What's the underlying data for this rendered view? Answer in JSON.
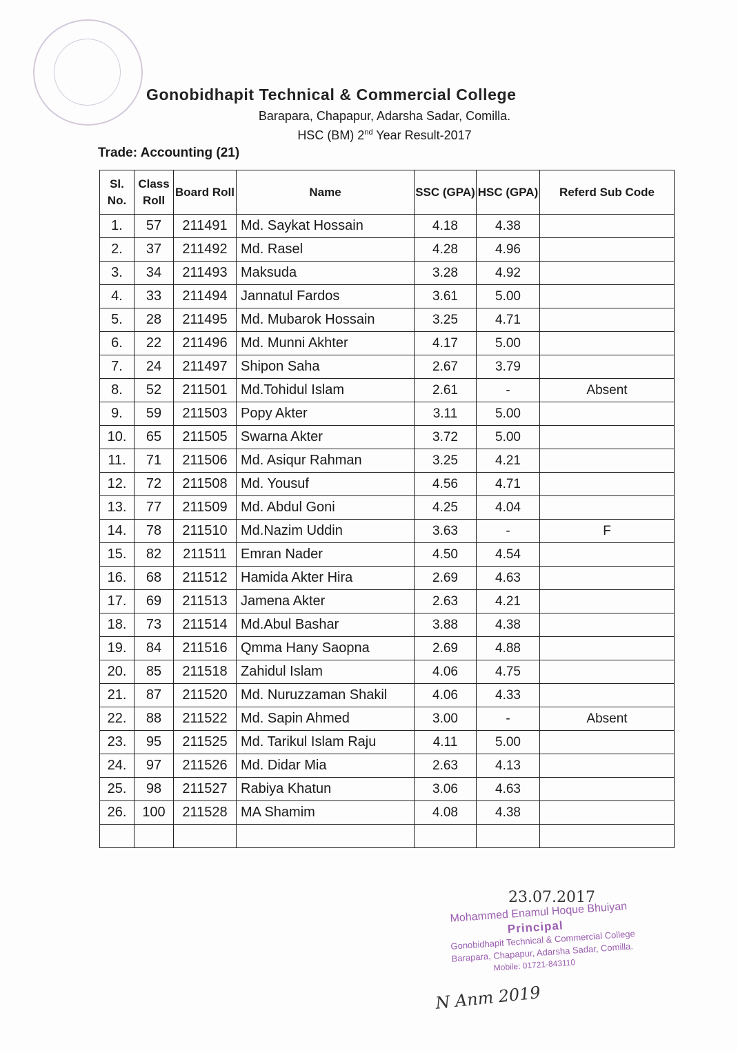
{
  "header": {
    "college": "Gonobidhapit Technical & Commercial College",
    "address": "Barapara, Chapapur, Adarsha Sadar, Comilla.",
    "result_prefix": "HSC (BM) 2",
    "result_sup": "nd",
    "result_suffix": " Year Result-2017",
    "trade": "Trade: Accounting (21)"
  },
  "table": {
    "columns": [
      "Sl. No.",
      "Class Roll",
      "Board Roll",
      "Name",
      "SSC (GPA)",
      "HSC (GPA)",
      "Referd Sub Code"
    ],
    "rows": [
      [
        "1.",
        "57",
        "211491",
        "Md. Saykat Hossain",
        "4.18",
        "4.38",
        ""
      ],
      [
        "2.",
        "37",
        "211492",
        "Md. Rasel",
        "4.28",
        "4.96",
        ""
      ],
      [
        "3.",
        "34",
        "211493",
        "Maksuda",
        "3.28",
        "4.92",
        ""
      ],
      [
        "4.",
        "33",
        "211494",
        "Jannatul Fardos",
        "3.61",
        "5.00",
        ""
      ],
      [
        "5.",
        "28",
        "211495",
        "Md. Mubarok Hossain",
        "3.25",
        "4.71",
        ""
      ],
      [
        "6.",
        "22",
        "211496",
        "Md. Munni Akhter",
        "4.17",
        "5.00",
        ""
      ],
      [
        "7.",
        "24",
        "211497",
        "Shipon Saha",
        "2.67",
        "3.79",
        ""
      ],
      [
        "8.",
        "52",
        "211501",
        "Md.Tohidul Islam",
        "2.61",
        "-",
        "Absent"
      ],
      [
        "9.",
        "59",
        "211503",
        "Popy Akter",
        "3.11",
        "5.00",
        ""
      ],
      [
        "10.",
        "65",
        "211505",
        "Swarna Akter",
        "3.72",
        "5.00",
        ""
      ],
      [
        "11.",
        "71",
        "211506",
        "Md. Asiqur Rahman",
        "3.25",
        "4.21",
        ""
      ],
      [
        "12.",
        "72",
        "211508",
        "Md. Yousuf",
        "4.56",
        "4.71",
        ""
      ],
      [
        "13.",
        "77",
        "211509",
        "Md. Abdul Goni",
        "4.25",
        "4.04",
        ""
      ],
      [
        "14.",
        "78",
        "211510",
        "Md.Nazim Uddin",
        "3.63",
        "-",
        "F"
      ],
      [
        "15.",
        "82",
        "211511",
        "Emran Nader",
        "4.50",
        "4.54",
        ""
      ],
      [
        "16.",
        "68",
        "211512",
        "Hamida Akter Hira",
        "2.69",
        "4.63",
        ""
      ],
      [
        "17.",
        "69",
        "211513",
        "Jamena Akter",
        "2.63",
        "4.21",
        ""
      ],
      [
        "18.",
        "73",
        "211514",
        "Md.Abul Bashar",
        "3.88",
        "4.38",
        ""
      ],
      [
        "19.",
        "84",
        "211516",
        "Qmma Hany Saopna",
        "2.69",
        "4.88",
        ""
      ],
      [
        "20.",
        "85",
        "211518",
        "Zahidul Islam",
        "4.06",
        "4.75",
        ""
      ],
      [
        "21.",
        "87",
        "211520",
        "Md. Nuruzzaman Shakil",
        "4.06",
        "4.33",
        ""
      ],
      [
        "22.",
        "88",
        "211522",
        "Md. Sapin Ahmed",
        "3.00",
        "-",
        "Absent"
      ],
      [
        "23.",
        "95",
        "211525",
        "Md. Tarikul Islam Raju",
        "4.11",
        "5.00",
        ""
      ],
      [
        "24.",
        "97",
        "211526",
        "Md. Didar Mia",
        "2.63",
        "4.13",
        ""
      ],
      [
        "25.",
        "98",
        "211527",
        "Rabiya Khatun",
        "3.06",
        "4.63",
        ""
      ],
      [
        "26.",
        "100",
        "211528",
        "MA Shamim",
        "4.08",
        "4.38",
        ""
      ]
    ]
  },
  "signature": {
    "date": "23.07.2017",
    "name": "Mohammed Enamul Hoque Bhuiyan",
    "designation": "Principal",
    "college": "Gonobidhapit Technical & Commercial College",
    "address": "Barapara, Chapapur, Adarsha Sadar, Comilla.",
    "mobile": "Mobile: 01721-843110",
    "handwritten_note": "N Anm 2019",
    "stamp_color": "#9b5fb0"
  }
}
